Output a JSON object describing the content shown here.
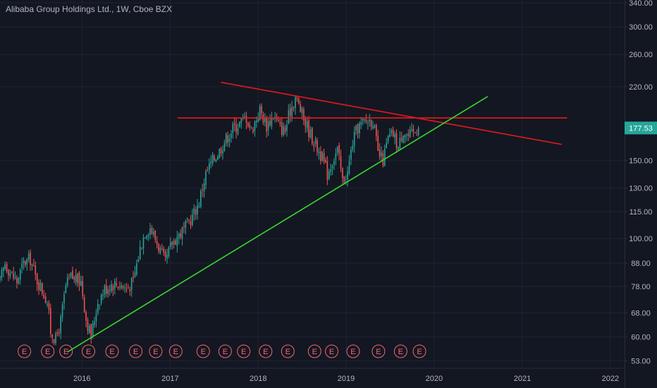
{
  "header": {
    "symbol_title": "Alibaba Group Holdings Ltd., 1W, Cboe BZX"
  },
  "price_axis": {
    "current_price_label": "177.53"
  },
  "colors": {
    "background": "#131722",
    "grid": "#1f2330",
    "up_candle": "#26a69a",
    "down_candle": "#ef5350",
    "trendline_red": "#e51a1a",
    "trendline_green": "#39d631",
    "earnings_badge": "#f06772",
    "price_badge": "#26a69a"
  },
  "earnings_badge_letter": "E",
  "chart_data": {
    "type": "candlestick",
    "title": "Alibaba Group Holdings Ltd., 1W, Cboe BZX",
    "interval": "1W",
    "scale": "log",
    "y_ticks": [
      53,
      60,
      68,
      78,
      88,
      100,
      115,
      130,
      150,
      177.53,
      220,
      260,
      300,
      340
    ],
    "y_tick_labels": [
      "53.00",
      "60.00",
      "68.00",
      "78.00",
      "88.00",
      "100.00",
      "115.00",
      "130.00",
      "150.00",
      "177.53",
      "220.00",
      "260.00",
      "300.00",
      "340.00"
    ],
    "ylim": [
      51,
      345
    ],
    "x_tick_labels": [
      "2016",
      "2017",
      "2018",
      "2019",
      "2020",
      "2021",
      "2022"
    ],
    "xlim": [
      "2015-01-26",
      "2022-03-01"
    ],
    "grid": true,
    "last_price": 177.53,
    "price_path": [
      [
        "2015-01-26",
        80
      ],
      [
        "2015-02-16",
        88
      ],
      [
        "2015-03-09",
        84
      ],
      [
        "2015-04-06",
        80
      ],
      [
        "2015-05-04",
        88
      ],
      [
        "2015-06-01",
        90
      ],
      [
        "2015-06-22",
        82
      ],
      [
        "2015-07-13",
        78
      ],
      [
        "2015-08-10",
        72
      ],
      [
        "2015-08-24",
        62
      ],
      [
        "2015-09-14",
        59
      ],
      [
        "2015-10-05",
        65
      ],
      [
        "2015-10-26",
        78
      ],
      [
        "2015-11-16",
        82
      ],
      [
        "2015-12-07",
        81
      ],
      [
        "2015-12-28",
        80
      ],
      [
        "2016-01-18",
        66
      ],
      [
        "2016-02-08",
        60
      ],
      [
        "2016-03-07",
        72
      ],
      [
        "2016-04-04",
        77
      ],
      [
        "2016-05-02",
        79
      ],
      [
        "2016-06-06",
        79
      ],
      [
        "2016-07-04",
        77
      ],
      [
        "2016-08-01",
        80
      ],
      [
        "2016-08-29",
        95
      ],
      [
        "2016-09-19",
        104
      ],
      [
        "2016-10-10",
        106
      ],
      [
        "2016-10-31",
        100
      ],
      [
        "2016-11-21",
        94
      ],
      [
        "2016-12-12",
        88
      ],
      [
        "2017-01-09",
        98
      ],
      [
        "2017-02-06",
        102
      ],
      [
        "2017-03-06",
        106
      ],
      [
        "2017-04-03",
        112
      ],
      [
        "2017-05-01",
        121
      ],
      [
        "2017-05-29",
        140
      ],
      [
        "2017-06-26",
        150
      ],
      [
        "2017-07-24",
        158
      ],
      [
        "2017-08-21",
        168
      ],
      [
        "2017-09-18",
        177
      ],
      [
        "2017-10-16",
        182
      ],
      [
        "2017-11-13",
        188
      ],
      [
        "2017-12-04",
        175
      ],
      [
        "2018-01-08",
        195
      ],
      [
        "2018-02-05",
        180
      ],
      [
        "2018-03-05",
        190
      ],
      [
        "2018-04-02",
        178
      ],
      [
        "2018-04-23",
        175
      ],
      [
        "2018-05-14",
        195
      ],
      [
        "2018-06-04",
        208
      ],
      [
        "2018-06-18",
        200
      ],
      [
        "2018-07-09",
        186
      ],
      [
        "2018-08-06",
        172
      ],
      [
        "2018-09-03",
        160
      ],
      [
        "2018-09-24",
        152
      ],
      [
        "2018-10-15",
        140
      ],
      [
        "2018-11-05",
        150
      ],
      [
        "2018-11-26",
        158
      ],
      [
        "2018-12-17",
        135
      ],
      [
        "2019-01-07",
        140
      ],
      [
        "2019-01-28",
        165
      ],
      [
        "2019-02-18",
        178
      ],
      [
        "2019-03-11",
        182
      ],
      [
        "2019-04-01",
        185
      ],
      [
        "2019-04-22",
        185
      ],
      [
        "2019-05-13",
        155
      ],
      [
        "2019-06-03",
        150
      ],
      [
        "2019-06-24",
        168
      ],
      [
        "2019-07-15",
        172
      ],
      [
        "2019-08-05",
        160
      ],
      [
        "2019-08-26",
        176
      ],
      [
        "2019-09-16",
        170
      ],
      [
        "2019-10-07",
        172
      ],
      [
        "2019-10-28",
        177.53
      ]
    ],
    "earnings_dates": [
      "2015-01-29",
      "2015-05-07",
      "2015-08-12",
      "2015-10-27",
      "2016-01-28",
      "2016-05-05",
      "2016-08-11",
      "2016-11-02",
      "2017-01-24",
      "2017-05-18",
      "2017-08-17",
      "2017-11-02",
      "2018-02-01",
      "2018-05-04",
      "2018-08-23",
      "2018-11-02",
      "2019-01-30",
      "2019-05-15",
      "2019-08-15",
      "2019-11-01"
    ],
    "trendlines": [
      {
        "name": "descending resistance",
        "color": "#e51a1a",
        "points": [
          [
            "2017-07-31",
            225
          ],
          [
            "2021-06-14",
            163
          ]
        ]
      },
      {
        "name": "horizontal resistance",
        "color": "#e51a1a",
        "points": [
          [
            "2017-01-31",
            187
          ],
          [
            "2021-07-05",
            187
          ]
        ]
      },
      {
        "name": "ascending support",
        "color": "#39d631",
        "points": [
          [
            "2015-11-02",
            55.5
          ],
          [
            "2020-08-10",
            209
          ]
        ]
      }
    ]
  }
}
